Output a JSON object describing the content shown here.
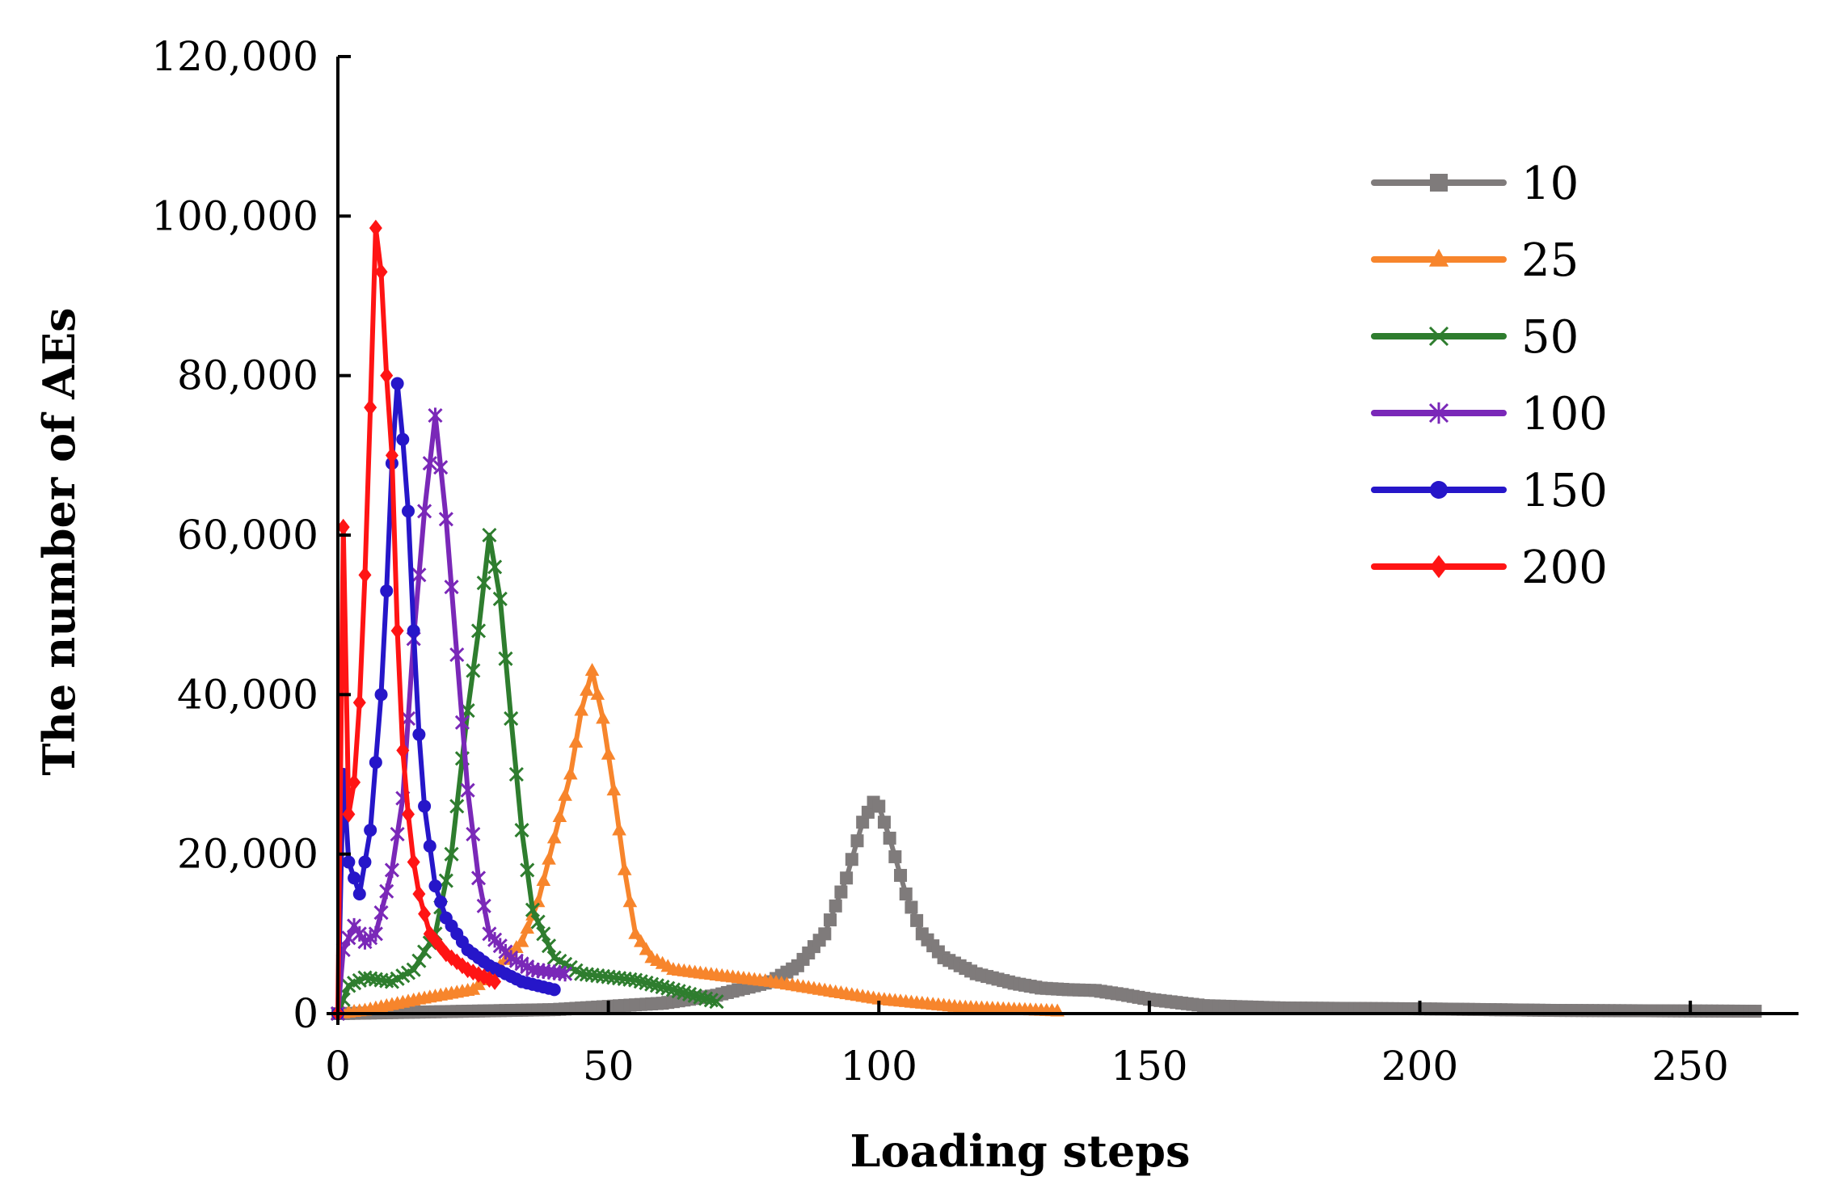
{
  "chart_data": {
    "type": "line",
    "title": "",
    "xlabel": "Loading steps",
    "ylabel": "The number of AEs",
    "xlim": [
      0,
      270
    ],
    "ylim": [
      0,
      120000
    ],
    "xticks": [
      0,
      50,
      100,
      150,
      200,
      250
    ],
    "yticks": [
      0,
      20000,
      40000,
      60000,
      80000,
      100000,
      120000
    ],
    "xtick_labels": [
      "0",
      "50",
      "100",
      "150",
      "200",
      "250"
    ],
    "ytick_labels": [
      "0",
      "20,000",
      "40,000",
      "60,000",
      "80,000",
      "100,000",
      "120,000"
    ],
    "legend_position": "top-right",
    "series": [
      {
        "name": "10",
        "color": "#7f7b7b",
        "marker": "square",
        "step": 1,
        "x": [
          0,
          40,
          60,
          70,
          80,
          85,
          90,
          94,
          97,
          99,
          100,
          102,
          105,
          108,
          112,
          118,
          125,
          130,
          135,
          140,
          145,
          150,
          160,
          175,
          200,
          225,
          262
        ],
        "values": [
          0,
          500,
          1300,
          2300,
          4000,
          6000,
          10000,
          17000,
          24000,
          26500,
          26000,
          22000,
          15000,
          10000,
          7000,
          5000,
          3800,
          3200,
          3000,
          2900,
          2400,
          1800,
          1000,
          700,
          600,
          400,
          300
        ]
      },
      {
        "name": "25",
        "color": "#f7852c",
        "marker": "triangle",
        "step": 1,
        "x": [
          0,
          5,
          15,
          25,
          30,
          34,
          37,
          40,
          43,
          45,
          47,
          49,
          51,
          53,
          55,
          58,
          62,
          70,
          80,
          100,
          115,
          133
        ],
        "values": [
          0,
          400,
          1800,
          3000,
          6000,
          9000,
          14000,
          22000,
          30000,
          38000,
          43000,
          37000,
          28000,
          18000,
          10000,
          7000,
          5500,
          4800,
          4000,
          1800,
          800,
          300
        ]
      },
      {
        "name": "50",
        "color": "#2e7d2e",
        "marker": "x",
        "step": 1,
        "x": [
          0,
          2,
          5,
          10,
          14,
          18,
          21,
          24,
          26,
          28,
          30,
          32,
          34,
          36,
          40,
          45,
          55,
          62,
          70
        ],
        "values": [
          0,
          3500,
          4500,
          4000,
          5500,
          10000,
          20000,
          38000,
          48000,
          60000,
          52000,
          37000,
          23000,
          13000,
          7000,
          5000,
          4200,
          3000,
          1500
        ]
      },
      {
        "name": "100",
        "color": "#7a28b8",
        "marker": "star",
        "step": 1,
        "x": [
          0,
          1,
          3,
          5,
          7,
          10,
          12,
          14,
          16,
          18,
          20,
          22,
          24,
          26,
          28,
          32,
          36,
          42
        ],
        "values": [
          0,
          8000,
          11000,
          9000,
          10000,
          18000,
          27000,
          47000,
          63000,
          75000,
          62000,
          45000,
          28000,
          17000,
          10000,
          7000,
          5500,
          5000
        ]
      },
      {
        "name": "150",
        "color": "#2616c9",
        "marker": "circle",
        "step": 1,
        "x": [
          0,
          1,
          2,
          4,
          6,
          8,
          9,
          10,
          11,
          12,
          13,
          14,
          15,
          16,
          18,
          20,
          24,
          28,
          34,
          40
        ],
        "values": [
          0,
          30000,
          19000,
          15000,
          23000,
          40000,
          53000,
          69000,
          79000,
          72000,
          63000,
          48000,
          35000,
          26000,
          16000,
          12000,
          8000,
          6000,
          4000,
          3000
        ]
      },
      {
        "name": "200",
        "color": "#ff1414",
        "marker": "diamond",
        "step": 1,
        "x": [
          0,
          1,
          2,
          3,
          4,
          5,
          6,
          7,
          8,
          9,
          10,
          11,
          12,
          13,
          14,
          15,
          17,
          20,
          24,
          29
        ],
        "values": [
          0,
          61000,
          25000,
          29000,
          39000,
          55000,
          76000,
          98500,
          93000,
          80000,
          70000,
          48000,
          33000,
          25000,
          19000,
          15000,
          10000,
          7500,
          5500,
          4000
        ]
      }
    ]
  }
}
